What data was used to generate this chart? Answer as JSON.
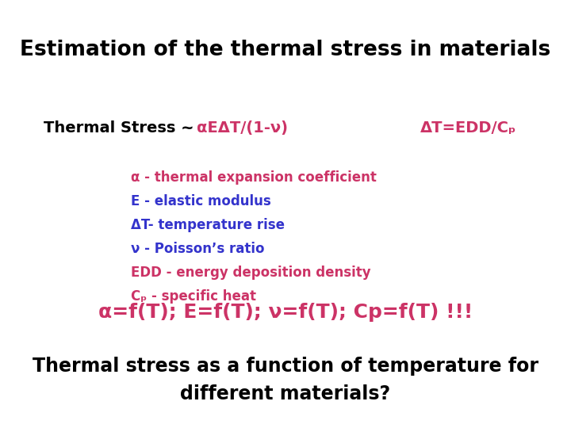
{
  "background_color": "#ffffff",
  "title": "Estimation of the thermal stress in materials",
  "title_color": "#000000",
  "line1_black": "Thermal Stress ~ ",
  "line1_pink": "αEΔT/(1-ν)",
  "line1_pink2": "ΔT=EDD/Cₚ",
  "bullet_texts": [
    "α - thermal expansion coefficient",
    "E - elastic modulus",
    "ΔT- temperature rise",
    "ν - Poisson’s ratio",
    "EDD - energy deposition density",
    "Cₚ - specific heat"
  ],
  "bullet_colors": [
    "#cc3366",
    "#3333cc",
    "#3333cc",
    "#3333cc",
    "#cc3366",
    "#cc3366"
  ],
  "formula_line": "α=f(T); E=f(T); ν=f(T); Cp=f(T) !!!",
  "formula_color": "#cc3366",
  "bottom_line1": "Thermal stress as a function of temperature for",
  "bottom_line2": "different materials?",
  "bottom_color": "#000000"
}
